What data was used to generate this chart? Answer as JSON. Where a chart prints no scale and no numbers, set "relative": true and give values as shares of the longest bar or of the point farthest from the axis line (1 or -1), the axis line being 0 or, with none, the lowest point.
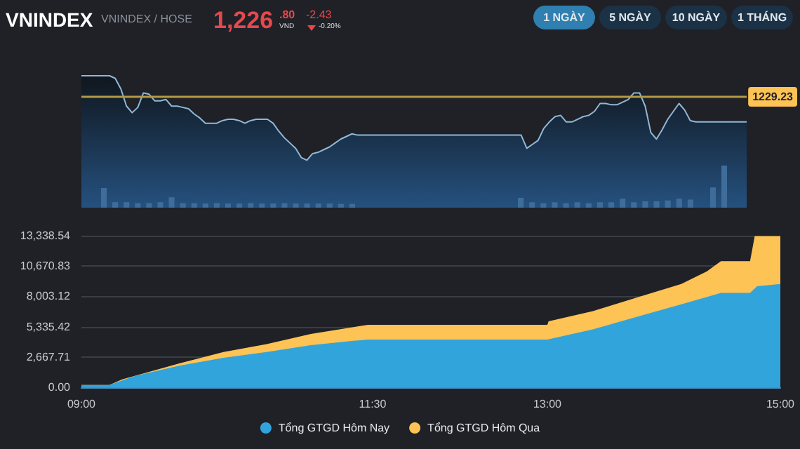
{
  "chart_data": [
    {
      "type": "other",
      "title": "VNINDEX",
      "subtitle": "VNINDEX / HOSE",
      "annotations": [
        "1,226",
        ".80",
        "VND",
        "-2.43",
        "-0.20%",
        "1 NGÀY",
        "5 NGÀY",
        "10 NGÀY",
        "1 THÁNG"
      ]
    },
    {
      "type": "area",
      "relative": true,
      "tick_labels": false,
      "grid": false,
      "legend": false,
      "marker": "none",
      "line_style": "solid",
      "categories": [
        null,
        null,
        null,
        null,
        null,
        null,
        null,
        null,
        null,
        null,
        null,
        null,
        null,
        null,
        null,
        null,
        null,
        null,
        null,
        null,
        null,
        null,
        null,
        null,
        null,
        null,
        null,
        null,
        null,
        null,
        null,
        null,
        null,
        null,
        null,
        null,
        null,
        null,
        null,
        null,
        null,
        null,
        null,
        null,
        null,
        null,
        null,
        null,
        null,
        null,
        null,
        null,
        null,
        null,
        null,
        null,
        null,
        null,
        null,
        null,
        null,
        null,
        null,
        null,
        null,
        null,
        null,
        null,
        null,
        null,
        null,
        null,
        null,
        null,
        null,
        null,
        null,
        null,
        null,
        null,
        null,
        null,
        null,
        null,
        null,
        null,
        null,
        null,
        null,
        null,
        null,
        null,
        null,
        null,
        null,
        null,
        null,
        null,
        null,
        null,
        null,
        null,
        null,
        null,
        null,
        null,
        null,
        null,
        null,
        null,
        null,
        null,
        null,
        null,
        null,
        null,
        null,
        null,
        null
      ],
      "ref_lines": [
        {
          "axis": "y",
          "value": 0.84,
          "color": "#b39a45"
        }
      ],
      "annotations": [
        "1229.23"
      ],
      "series": [
        {
          "color": "#8fb8d8",
          "values": [
            1.0,
            1.0,
            1.0,
            1.0,
            1.0,
            1.0,
            0.98,
            0.9,
            0.77,
            0.72,
            0.76,
            0.87,
            0.86,
            0.81,
            0.81,
            0.82,
            0.77,
            0.77,
            0.76,
            0.75,
            0.71,
            0.68,
            0.64,
            0.64,
            0.64,
            0.66,
            0.67,
            0.67,
            0.66,
            0.64,
            0.66,
            0.67,
            0.67,
            0.67,
            0.64,
            0.58,
            0.53,
            0.49,
            0.45,
            0.38,
            0.36,
            0.41,
            0.42,
            0.44,
            0.46,
            0.49,
            0.52,
            0.54,
            0.56,
            0.55,
            0.55,
            0.55,
            0.55,
            0.55,
            0.55,
            0.55,
            0.55,
            0.55,
            0.55,
            0.55,
            0.55,
            0.55,
            0.55,
            0.55,
            0.55,
            0.55,
            0.55,
            0.55,
            0.55,
            0.55,
            0.55,
            0.55,
            0.55,
            0.55,
            0.55,
            0.55,
            0.55,
            0.55,
            0.55,
            0.45,
            0.48,
            0.51,
            0.6,
            0.65,
            0.69,
            0.7,
            0.65,
            0.65,
            0.67,
            0.69,
            0.7,
            0.73,
            0.79,
            0.79,
            0.78,
            0.78,
            0.8,
            0.82,
            0.87,
            0.87,
            0.77,
            0.57,
            0.52,
            0.59,
            0.67,
            0.73,
            0.79,
            0.74,
            0.66,
            0.65,
            0.65,
            0.65,
            0.65,
            0.65,
            0.65,
            0.65,
            0.65,
            0.65,
            0.65
          ]
        }
      ]
    },
    {
      "type": "bar",
      "relative": true,
      "tick_labels": false,
      "grid": false,
      "legend": false,
      "categories": [
        null,
        null,
        null,
        null,
        null,
        null,
        null,
        null,
        null,
        null,
        null,
        null,
        null,
        null,
        null,
        null,
        null,
        null,
        null,
        null,
        null,
        null,
        null
      ],
      "series": [
        {
          "color": "#3f6d9b",
          "values": [
            1.0,
            0.28,
            0.28,
            0.23,
            0.23,
            0.28,
            0.53,
            0.23,
            0.23,
            0.21,
            0.23,
            0.21,
            0.21,
            0.23,
            0.21,
            0.21,
            0.23,
            0.21,
            0.21,
            0.21,
            0.21,
            0.19,
            0.19
          ]
        }
      ]
    },
    {
      "type": "bar",
      "relative": true,
      "tick_labels": false,
      "grid": false,
      "legend": false,
      "categories": [
        null,
        null,
        null,
        null,
        null,
        null,
        null,
        null,
        null,
        null,
        null,
        null,
        null,
        null,
        null,
        null
      ],
      "series": [
        {
          "color": "#3f6d9b",
          "values": [
            1.0,
            0.55,
            0.45,
            0.55,
            0.45,
            0.55,
            0.45,
            0.55,
            0.55,
            0.91,
            0.55,
            0.64,
            0.64,
            0.73,
            0.91,
            0.82
          ]
        }
      ]
    },
    {
      "type": "bar",
      "relative": true,
      "tick_labels": false,
      "grid": false,
      "legend": false,
      "categories": [
        null,
        null
      ],
      "series": [
        {
          "color": "#3f6d9b",
          "values": [
            0.48,
            1.0
          ]
        }
      ]
    },
    {
      "type": "area",
      "xlim": [
        9,
        15
      ],
      "xticks": [
        {
          "value": 9,
          "label": "09:00"
        },
        {
          "value": 11.5,
          "label": "11:30"
        },
        {
          "value": 13,
          "label": "13:00"
        },
        {
          "value": 15,
          "label": "15:00"
        }
      ],
      "ylim": [
        0,
        13338.54
      ],
      "yticks": [
        {
          "value": 0,
          "label": "0.00"
        },
        {
          "value": 2667.71,
          "label": "2,667.71"
        },
        {
          "value": 5335.42,
          "label": "5,335.42"
        },
        {
          "value": 8003.12,
          "label": "8,003.12"
        },
        {
          "value": 10670.83,
          "label": "10,670.83"
        },
        {
          "value": 13338.54,
          "label": "13,338.54"
        }
      ],
      "grid": "y",
      "legend": "bottom",
      "marker": "none",
      "line_style": "solid",
      "series": [
        {
          "name": "Tổng GTGD Hôm Nay",
          "color": "#32a4dc",
          "x": [
            9.0,
            9.24,
            9.46,
            9.84,
            10.22,
            10.59,
            10.97,
            11.35,
            11.46,
            13.0,
            13.39,
            13.77,
            14.15,
            14.49,
            14.74,
            14.8,
            15.0
          ],
          "values": [
            200,
            200,
            1000,
            1900,
            2600,
            3100,
            3700,
            4100,
            4200,
            4200,
            5100,
            6200,
            7300,
            8300,
            8300,
            8900,
            9100
          ]
        },
        {
          "name": "Tổng GTGD Hôm Qua",
          "color": "#fdc354",
          "x": [
            9.0,
            9.24,
            9.35,
            9.84,
            10.22,
            10.59,
            10.97,
            11.46,
            13.0,
            13.01,
            13.39,
            13.77,
            14.15,
            14.37,
            14.49,
            14.74,
            14.78,
            15.0
          ],
          "values": [
            200,
            200,
            700,
            2100,
            3100,
            3800,
            4700,
            5500,
            5500,
            5800,
            6700,
            7900,
            9100,
            10200,
            11100,
            11100,
            13300,
            13300
          ]
        }
      ]
    }
  ]
}
